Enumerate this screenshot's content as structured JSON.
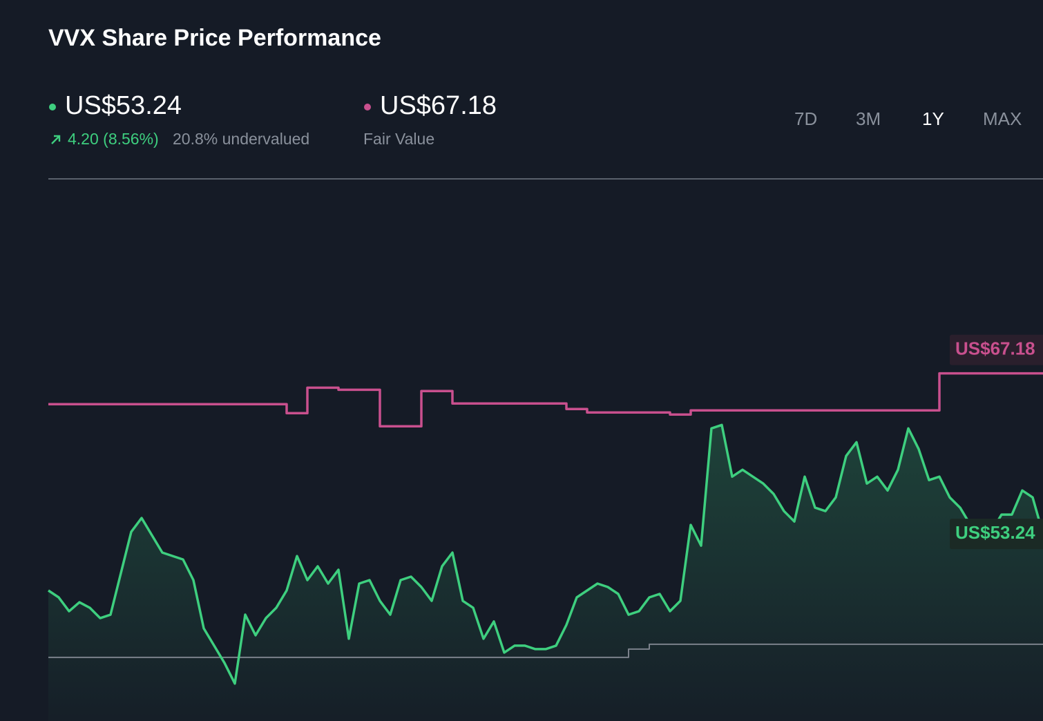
{
  "header": {
    "title": "VVX Share Price Performance",
    "price": "US$53.24",
    "change": "4.20 (8.56%)",
    "valuation": "20.8% undervalued",
    "fair_value": "US$67.18",
    "fair_value_caption": "Fair Value",
    "periods": [
      "7D",
      "3M",
      "1Y",
      "MAX"
    ],
    "active_period": "1Y"
  },
  "chart_data": {
    "type": "line",
    "ylim": [
      37,
      84
    ],
    "value_labels": [
      "US$67.18",
      "US$53.24"
    ],
    "series": [
      {
        "color": "#3ecf7f",
        "values": [
          48.33,
          47.73,
          46.53,
          47.31,
          46.83,
          45.93,
          46.23,
          49.83,
          53.42,
          54.62,
          53.12,
          51.62,
          51.32,
          51.02,
          49.23,
          45.04,
          43.54,
          42.04,
          40.25,
          46.23,
          44.44,
          45.93,
          46.83,
          48.33,
          51.32,
          49.23,
          50.43,
          48.93,
          50.13,
          44.14,
          48.93,
          49.23,
          47.43,
          46.23,
          49.23,
          49.53,
          48.63,
          47.43,
          50.43,
          51.62,
          47.43,
          46.83,
          44.14,
          45.64,
          42.94,
          43.54,
          43.54,
          43.24,
          43.24,
          43.54,
          45.34,
          47.73,
          48.33,
          48.93,
          48.63,
          48.03,
          46.23,
          46.53,
          47.73,
          48.03,
          46.53,
          47.43,
          54.02,
          52.22,
          62.4,
          62.7,
          58.21,
          58.81,
          58.21,
          57.61,
          56.71,
          55.22,
          54.32,
          58.21,
          55.52,
          55.22,
          56.41,
          60.01,
          61.2,
          57.61,
          58.21,
          57.01,
          58.81,
          62.4,
          60.61,
          57.91,
          58.21,
          56.41,
          55.52,
          54.02,
          52.22,
          53.42,
          54.92,
          54.92,
          57.01,
          56.41,
          53.24
        ]
      },
      {
        "color": "#c9508e",
        "values": [
          64.5,
          64.5,
          64.5,
          64.5,
          64.5,
          64.5,
          64.5,
          64.5,
          64.5,
          64.5,
          64.5,
          64.5,
          64.5,
          64.5,
          64.5,
          64.5,
          64.5,
          64.5,
          64.5,
          64.5,
          64.5,
          64.5,
          64.5,
          63.72,
          63.72,
          65.93,
          65.93,
          65.93,
          65.75,
          65.75,
          65.75,
          65.75,
          62.58,
          62.58,
          62.58,
          62.58,
          65.64,
          65.64,
          65.64,
          64.56,
          64.56,
          64.56,
          64.56,
          64.56,
          64.56,
          64.56,
          64.56,
          64.56,
          64.56,
          64.56,
          64.08,
          64.08,
          63.78,
          63.78,
          63.78,
          63.78,
          63.78,
          63.78,
          63.78,
          63.78,
          63.6,
          63.6,
          63.96,
          63.96,
          63.96,
          63.96,
          63.96,
          63.96,
          63.96,
          63.96,
          63.96,
          63.96,
          63.96,
          63.96,
          63.96,
          63.96,
          63.96,
          63.96,
          63.96,
          63.96,
          63.96,
          63.96,
          63.96,
          63.96,
          63.96,
          63.96,
          67.18,
          67.18,
          67.18,
          67.18,
          67.18,
          67.18,
          67.18,
          67.18,
          67.18,
          67.18,
          67.18
        ]
      },
      {
        "color": "#7b818b",
        "values": [
          42.52,
          42.52,
          42.52,
          42.52,
          42.52,
          42.52,
          42.52,
          42.52,
          42.52,
          42.52,
          42.52,
          42.52,
          42.52,
          42.52,
          42.52,
          42.52,
          42.52,
          42.52,
          42.52,
          42.52,
          42.52,
          42.52,
          42.52,
          42.52,
          42.52,
          42.52,
          42.52,
          42.52,
          42.52,
          42.52,
          42.52,
          42.52,
          42.52,
          42.52,
          42.52,
          42.52,
          42.52,
          42.52,
          42.52,
          42.52,
          42.52,
          42.52,
          42.52,
          42.52,
          42.52,
          42.52,
          42.52,
          42.52,
          42.52,
          42.52,
          42.52,
          42.52,
          42.52,
          42.52,
          42.52,
          42.52,
          43.24,
          43.24,
          43.66,
          43.66,
          43.66,
          43.66,
          43.66,
          43.66,
          43.66,
          43.66,
          43.66,
          43.66,
          43.66,
          43.66,
          43.66,
          43.66,
          43.66,
          43.66,
          43.66,
          43.66,
          43.66,
          43.66,
          43.66,
          43.66,
          43.66,
          43.66,
          43.66,
          43.66,
          43.66,
          43.66,
          43.66,
          43.66,
          43.66,
          43.66,
          43.66,
          43.66,
          43.66,
          43.66,
          43.66,
          43.66,
          43.66
        ]
      }
    ]
  }
}
